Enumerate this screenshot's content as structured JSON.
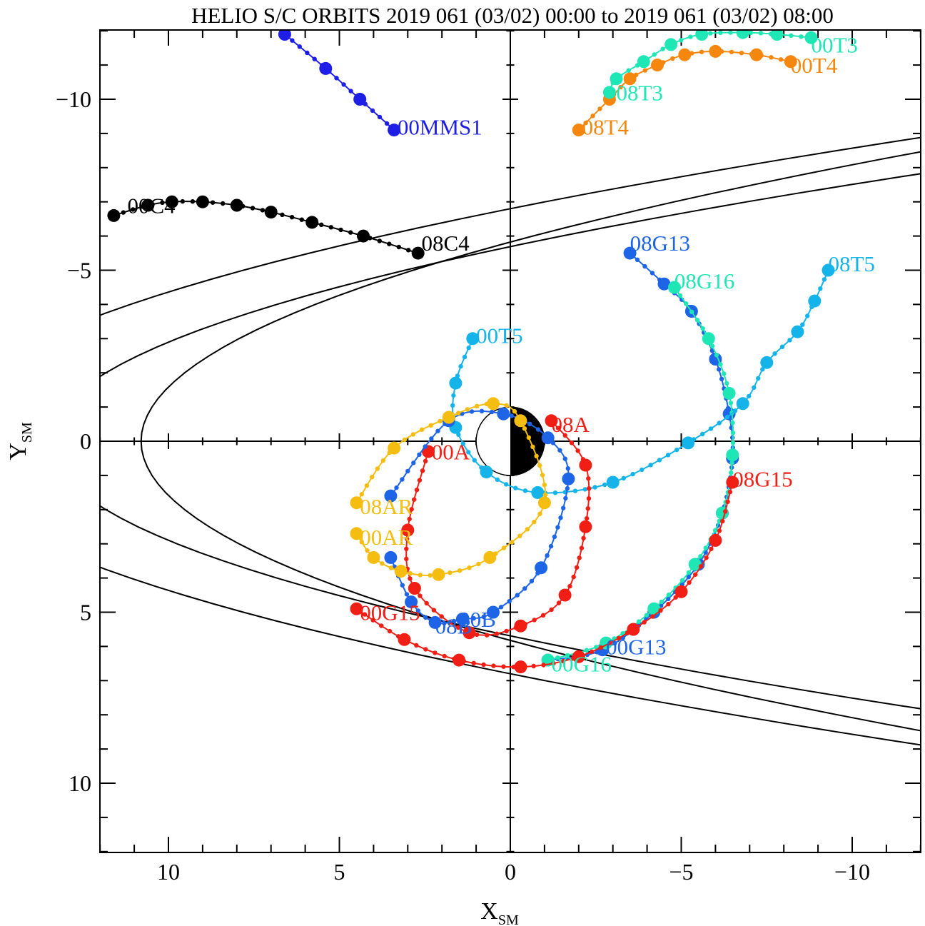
{
  "chart_data": {
    "type": "line",
    "title": "HELIO S/C ORBITS 2019 061 (03/02) 00:00 to 2019 061 (03/02) 08:00",
    "xlabel": {
      "main": "X",
      "sub": "SM"
    },
    "ylabel": {
      "main": "Y",
      "sub": "SM"
    },
    "xlim": [
      12,
      -12
    ],
    "ylim": [
      -12,
      12
    ],
    "x_ticks": [
      "10",
      "5",
      "0",
      "−5",
      "−10"
    ],
    "y_ticks": [
      "−10",
      "−5",
      "0",
      "5",
      "10"
    ],
    "grid": false,
    "legend": "none",
    "earth": {
      "radius": 1,
      "night_side": "negative-x"
    },
    "boundaries": [
      {
        "name": "magnetopause",
        "standoff": 10.8,
        "flaring": 0.55
      },
      {
        "name": "bow-shock-inner",
        "standoff": 13.5,
        "flaring": 0.9
      },
      {
        "name": "bow-shock-outer",
        "standoff": 17,
        "flaring": 1.0
      }
    ],
    "series": [
      {
        "name": "MMS1",
        "color": "#1e1ee6",
        "start_label": "00MMS1",
        "points": [
          [
            3.4,
            -9.1
          ],
          [
            4.4,
            -10.0
          ],
          [
            5.4,
            -10.9
          ],
          [
            6.6,
            -11.9
          ]
        ]
      },
      {
        "name": "C4",
        "color": "#000000",
        "start_label": "00C4",
        "end_label": "08C4",
        "points": [
          [
            11.6,
            -6.6
          ],
          [
            10.6,
            -6.9
          ],
          [
            9.9,
            -7.0
          ],
          [
            9.0,
            -7.0
          ],
          [
            8.0,
            -6.9
          ],
          [
            7.0,
            -6.7
          ],
          [
            5.8,
            -6.4
          ],
          [
            4.3,
            -6.0
          ],
          [
            2.7,
            -5.5
          ]
        ]
      },
      {
        "name": "T4",
        "color": "#f5870f",
        "start_label": "00T4",
        "end_label": "08T4",
        "points": [
          [
            -8.2,
            -11.1
          ],
          [
            -7.2,
            -11.3
          ],
          [
            -6.0,
            -11.4
          ],
          [
            -5.1,
            -11.3
          ],
          [
            -4.3,
            -11.0
          ],
          [
            -3.5,
            -10.6
          ],
          [
            -2.9,
            -10.0
          ],
          [
            -2.0,
            -9.1
          ]
        ]
      },
      {
        "name": "T3",
        "color": "#1ee6b4",
        "start_label": "00T3",
        "end_label": "08T3",
        "points": [
          [
            -8.8,
            -11.8
          ],
          [
            -7.8,
            -11.9
          ],
          [
            -6.8,
            -11.95
          ],
          [
            -5.6,
            -11.9
          ],
          [
            -4.7,
            -11.6
          ],
          [
            -3.9,
            -11.1
          ],
          [
            -3.1,
            -10.6
          ],
          [
            -2.9,
            -10.2
          ]
        ]
      },
      {
        "name": "G13",
        "color": "#1e64e6",
        "start_label": "00G13",
        "end_label": "08G13",
        "points": [
          [
            -1.1,
            6.4
          ],
          [
            -2.7,
            6.1
          ],
          [
            -4.2,
            5.0
          ],
          [
            -5.5,
            3.6
          ],
          [
            -6.2,
            2.1
          ],
          [
            -6.5,
            0.5
          ],
          [
            -6.4,
            -0.8
          ],
          [
            -6.0,
            -2.4
          ],
          [
            -5.3,
            -3.8
          ],
          [
            -4.5,
            -4.6
          ],
          [
            -3.5,
            -5.5
          ]
        ]
      },
      {
        "name": "G16",
        "color": "#1ee6b4",
        "start_label": "00G16",
        "end_label": "08G16",
        "points": [
          [
            -1.1,
            6.4
          ],
          [
            -2.8,
            5.9
          ],
          [
            -4.2,
            4.9
          ],
          [
            -5.4,
            3.6
          ],
          [
            -6.2,
            2.1
          ],
          [
            -6.5,
            0.4
          ],
          [
            -6.4,
            -1.4
          ],
          [
            -5.8,
            -3.0
          ],
          [
            -4.8,
            -4.5
          ]
        ]
      },
      {
        "name": "G15",
        "color": "#f01e14",
        "start_label": "00G15",
        "end_label": "08G15",
        "points": [
          [
            4.5,
            4.9
          ],
          [
            3.1,
            5.8
          ],
          [
            1.5,
            6.4
          ],
          [
            -0.3,
            6.6
          ],
          [
            -2.0,
            6.3
          ],
          [
            -3.6,
            5.5
          ],
          [
            -5.0,
            4.4
          ],
          [
            -6.0,
            2.9
          ],
          [
            -6.5,
            1.2
          ]
        ]
      },
      {
        "name": "T5",
        "color": "#14b4eb",
        "start_label": "00T5",
        "end_label": "08T5",
        "points": [
          [
            1.1,
            -3.0
          ],
          [
            1.6,
            -1.7
          ],
          [
            1.6,
            -0.4
          ],
          [
            0.7,
            0.9
          ],
          [
            -0.8,
            1.5
          ],
          [
            -3.0,
            1.2
          ],
          [
            -5.2,
            0.05
          ],
          [
            -6.8,
            -1.1
          ],
          [
            -7.5,
            -2.3
          ],
          [
            -8.4,
            -3.2
          ],
          [
            -8.9,
            -4.1
          ],
          [
            -9.3,
            -5.0
          ]
        ]
      },
      {
        "name": "A",
        "color": "#f01e14",
        "start_label": "00A",
        "end_label": "08A",
        "points": [
          [
            2.4,
            0.3
          ],
          [
            3.0,
            2.6
          ],
          [
            2.8,
            4.3
          ],
          [
            1.2,
            5.6
          ],
          [
            -0.3,
            5.4
          ],
          [
            -1.6,
            4.5
          ],
          [
            -2.2,
            2.5
          ],
          [
            -2.2,
            0.7
          ],
          [
            -1.2,
            -0.6
          ]
        ]
      },
      {
        "name": "B",
        "color": "#1e64e6",
        "start_label": "00B",
        "end_label": "08B",
        "points": [
          [
            3.5,
            3.4
          ],
          [
            2.9,
            4.7
          ],
          [
            2.2,
            5.3
          ],
          [
            1.4,
            5.2
          ],
          [
            0.5,
            5.0
          ],
          [
            -0.9,
            3.7
          ],
          [
            -1.7,
            1.1
          ],
          [
            -1.1,
            -0.1
          ],
          [
            0.2,
            -0.8
          ],
          [
            1.8,
            -0.6
          ],
          [
            3.5,
            1.6
          ]
        ]
      },
      {
        "name": "AR",
        "color": "#f5bd0f",
        "start_label": "00AR",
        "end_label": "08AR",
        "points": [
          [
            4.5,
            2.7
          ],
          [
            4.0,
            3.4
          ],
          [
            3.2,
            3.8
          ],
          [
            2.1,
            3.9
          ],
          [
            0.6,
            3.4
          ],
          [
            -1.0,
            1.8
          ],
          [
            -0.3,
            -0.6
          ],
          [
            0.5,
            -1.1
          ],
          [
            1.8,
            -0.7
          ],
          [
            3.4,
            0.2
          ],
          [
            4.5,
            1.8
          ]
        ]
      }
    ],
    "labels": [
      {
        "text": "00MMS1",
        "series": "MMS1",
        "x": 3.3,
        "y": -9.2
      },
      {
        "text": "00C4",
        "series": "C4",
        "x": 11.2,
        "y": -6.9
      },
      {
        "text": "08C4",
        "series": "C4",
        "x": 2.6,
        "y": -5.8
      },
      {
        "text": "00T3",
        "series": "T3",
        "x": -8.8,
        "y": -11.6
      },
      {
        "text": "00T4",
        "series": "T4",
        "x": -8.2,
        "y": -11.0
      },
      {
        "text": "08T3",
        "series": "T3",
        "x": -3.1,
        "y": -10.2
      },
      {
        "text": "08T4",
        "series": "T4",
        "x": -2.1,
        "y": -9.2
      },
      {
        "text": "08G13",
        "series": "G13",
        "x": -3.5,
        "y": -5.8
      },
      {
        "text": "08G16",
        "series": "G16",
        "x": -4.8,
        "y": -4.7
      },
      {
        "text": "08T5",
        "series": "T5",
        "x": -9.3,
        "y": -5.2
      },
      {
        "text": "00T5",
        "series": "T5",
        "x": 1.0,
        "y": -3.1
      },
      {
        "text": "08A",
        "series": "A",
        "x": -1.2,
        "y": -0.5
      },
      {
        "text": "00A",
        "series": "A",
        "x": 2.3,
        "y": 0.3
      },
      {
        "text": "08G15",
        "series": "G15",
        "x": -6.5,
        "y": 1.1
      },
      {
        "text": "08AR",
        "series": "AR",
        "x": 4.4,
        "y": 1.9
      },
      {
        "text": "00AR",
        "series": "AR",
        "x": 4.4,
        "y": 2.8
      },
      {
        "text": "00G15",
        "series": "G15",
        "x": 4.4,
        "y": 5.0
      },
      {
        "text": "08B",
        "series": "B",
        "x": 2.2,
        "y": 5.4
      },
      {
        "text": "00B",
        "series": "B",
        "x": 1.5,
        "y": 5.2
      },
      {
        "text": "00G13",
        "series": "G13",
        "x": -2.8,
        "y": 6.0
      },
      {
        "text": "00G16",
        "series": "G16",
        "x": -1.2,
        "y": 6.5
      }
    ]
  }
}
